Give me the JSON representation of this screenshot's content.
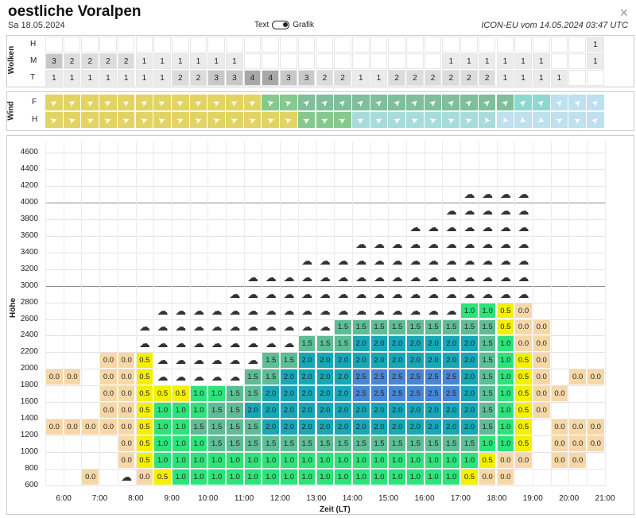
{
  "header": {
    "title": "oestliche Voralpen",
    "date": "Sa 18.05.2024",
    "toggle_left": "Text",
    "toggle_right": "Grafik",
    "source": "ICON-EU vom 14.05.2024 03:47 UTC",
    "close": "×"
  },
  "cloud_section": {
    "label": "Wolken",
    "rows": [
      {
        "label": "H",
        "values": [
          "",
          "",
          "",
          "",
          "",
          "",
          "",
          "",
          "",
          "",
          "",
          "",
          "",
          "",
          "",
          "",
          "",
          "",
          "",
          "",
          "",
          "",
          "",
          "",
          "",
          "",
          "",
          "",
          "",
          "",
          "1"
        ]
      },
      {
        "label": "M",
        "values": [
          "3",
          "2",
          "2",
          "2",
          "2",
          "1",
          "1",
          "1",
          "1",
          "1",
          "1",
          "",
          "",
          "",
          "",
          "",
          "",
          "",
          "",
          "",
          "",
          "",
          "1",
          "1",
          "1",
          "1",
          "1",
          "1",
          "",
          "",
          "1"
        ]
      },
      {
        "label": "T",
        "values": [
          "1",
          "1",
          "1",
          "1",
          "1",
          "1",
          "1",
          "2",
          "2",
          "3",
          "3",
          "4",
          "4",
          "3",
          "3",
          "2",
          "2",
          "1",
          "1",
          "2",
          "2",
          "2",
          "2",
          "2",
          "2",
          "1",
          "1",
          "1",
          "1",
          "",
          ""
        ]
      }
    ]
  },
  "wind_section": {
    "label": "Wind",
    "rows": [
      {
        "label": "F",
        "dirs": [
          60,
          60,
          60,
          60,
          60,
          60,
          60,
          60,
          60,
          60,
          60,
          60,
          70,
          70,
          45,
          45,
          45,
          45,
          45,
          45,
          45,
          45,
          45,
          45,
          45,
          45,
          45,
          45,
          45,
          45,
          45
        ]
      },
      {
        "label": "H",
        "dirs": [
          70,
          70,
          70,
          70,
          70,
          70,
          70,
          70,
          70,
          70,
          70,
          70,
          70,
          70,
          60,
          60,
          60,
          60,
          60,
          60,
          70,
          70,
          70,
          70,
          90,
          100,
          110,
          110,
          60,
          60,
          45
        ]
      }
    ]
  },
  "chart_data": {
    "type": "heatmap",
    "ylabel": "Höhe",
    "xlabel": "Zeit (LT)",
    "y_ticks": [
      "4600",
      "4400",
      "4200",
      "4000",
      "3800",
      "3600",
      "3400",
      "3200",
      "3000",
      "2800",
      "2600",
      "2400",
      "2200",
      "2000",
      "1800",
      "1600",
      "1400",
      "1200",
      "1000",
      "800",
      "600"
    ],
    "x_ticks": [
      "6:00",
      "7:00",
      "8:00",
      "9:00",
      "10:00",
      "11:00",
      "12:00",
      "13:00",
      "14:00",
      "15:00",
      "16:00",
      "17:00",
      "18:00",
      "19:00",
      "20:00",
      "21:00"
    ],
    "rows": [
      {
        "alt": 4100,
        "cells": "-----------------------CCCC----"
      },
      {
        "alt": 3900,
        "cells": "---------------------CCCCCC----"
      },
      {
        "alt": 3700,
        "cells": "-------------------CCCCCCCC----"
      },
      {
        "alt": 3500,
        "cells": "-----------------CCCCCCCCCC----"
      },
      {
        "alt": 3300,
        "cells": "---------------CCCCCCCCCCCC----"
      },
      {
        "alt": 3100,
        "cells": "-----------CCCCCCCCCCCCCCCC----"
      },
      {
        "alt": 2900,
        "cells": "---------CCCCCCCCCCCCCCCCCC----"
      },
      {
        "alt": 2700,
        "cells": "------CCCCCCCCCCCCCCCCCCCCCC---"
      },
      {
        "alt": 2500,
        "cells": "-----CCCCCCCCCCCCCCCCCCCCCCCC--"
      },
      {
        "alt": 2300,
        "cells": "-----CCCCCCCCCCCCCCCCCCCCCCCC--"
      },
      {
        "alt": 2100,
        "cells": "---CCCCCCCCCCCCCCCCCCCCCCCCCC--"
      },
      {
        "alt": 1900,
        "cells": "--CCCCCCCCCCCCCCCCCCCCCCCCCCCC-"
      },
      {
        "alt": 1700,
        "cells": "--CCCCCCCCCCCCCCCCCCCCCCCCCCCCC"
      },
      {
        "alt": 1500,
        "cells": "--CCCCCCCCCCCCCCCCCCCCCCCCCCCC-"
      },
      {
        "alt": 1300,
        "cells": "CCCCCCCCCCCCCCCCCCCCCCCCCCCCCCC"
      },
      {
        "alt": 1100,
        "cells": "--CCCCCCCCCCCCCCCCCCCCCCCCCCCCC"
      },
      {
        "alt": 900,
        "cells": "--CCCCCCCCCCCCCCCCCCCCCCCCCCCC-"
      },
      {
        "alt": 700,
        "cells": "--CCCCCCCCCCCCCCCCCCCCCCCCCCC--"
      }
    ],
    "values": {
      "r2700": [
        "",
        "",
        "",
        "",
        "",
        "",
        "",
        "",
        "",
        "",
        "",
        "",
        "",
        "",
        "",
        "",
        "",
        "",
        "",
        "",
        "",
        "",
        "",
        "1.0",
        "1.0",
        "0.5",
        "0.0",
        "",
        "",
        "",
        ""
      ],
      "r2500": [
        "",
        "",
        "",
        "",
        "",
        "",
        "",
        "",
        "",
        "",
        "",
        "",
        "",
        "",
        "",
        "",
        "1.5",
        "1.5",
        "1.5",
        "1.5",
        "1.5",
        "1.5",
        "1.5",
        "1.5",
        "1.5",
        "0.5",
        "0.0",
        "0.0",
        "",
        "",
        ""
      ],
      "r2300": [
        "",
        "",
        "",
        "",
        "",
        "",
        "",
        "",
        "",
        "",
        "",
        "",
        "",
        "",
        "1.5",
        "1.5",
        "1.5",
        "2.0",
        "2.0",
        "2.0",
        "2.0",
        "2.0",
        "2.0",
        "2.0",
        "1.5",
        "1.0",
        "0.0",
        "0.0",
        "",
        "",
        ""
      ],
      "r2100": [
        "",
        "",
        "",
        "0.0",
        "0.0",
        "0.5",
        "",
        "",
        "",
        "",
        "",
        "",
        "1.5",
        "1.5",
        "2.0",
        "2.0",
        "2.0",
        "2.0",
        "2.0",
        "2.0",
        "2.0",
        "2.0",
        "2.0",
        "2.0",
        "1.5",
        "1.0",
        "0.5",
        "0.0",
        "",
        "",
        ""
      ],
      "r1900": [
        "0.0",
        "0.0",
        "",
        "0.0",
        "0.0",
        "0.5",
        "",
        "",
        "",
        "",
        "",
        "1.5",
        "1.5",
        "2.0",
        "2.0",
        "2.0",
        "2.0",
        "2.5",
        "2.5",
        "2.5",
        "2.5",
        "2.5",
        "2.5",
        "2.0",
        "1.5",
        "1.0",
        "0.5",
        "0.0",
        "",
        "0.0",
        "0.0"
      ],
      "r1700": [
        "",
        "",
        "",
        "0.0",
        "0.0",
        "0.5",
        "0.5",
        "0.5",
        "1.0",
        "1.0",
        "1.5",
        "1.5",
        "2.0",
        "2.0",
        "2.0",
        "2.0",
        "2.0",
        "2.5",
        "2.5",
        "2.5",
        "2.5",
        "2.5",
        "2.5",
        "2.0",
        "1.5",
        "1.0",
        "0.5",
        "0.0",
        "0.0",
        "",
        ""
      ],
      "r1500": [
        "",
        "",
        "",
        "0.0",
        "0.0",
        "0.5",
        "1.0",
        "1.0",
        "1.0",
        "1.5",
        "1.5",
        "2.0",
        "2.0",
        "2.0",
        "2.0",
        "2.0",
        "2.0",
        "2.0",
        "2.0",
        "2.0",
        "2.0",
        "2.0",
        "2.0",
        "2.0",
        "1.5",
        "1.0",
        "0.5",
        "0.0",
        "",
        "",
        ""
      ],
      "r1300": [
        "0.0",
        "0.0",
        "0.0",
        "0.0",
        "0.0",
        "0.5",
        "1.0",
        "1.0",
        "1.5",
        "1.5",
        "1.5",
        "1.5",
        "2.0",
        "2.0",
        "2.0",
        "2.0",
        "2.0",
        "2.0",
        "2.0",
        "2.0",
        "2.0",
        "2.0",
        "2.0",
        "2.0",
        "1.5",
        "1.0",
        "0.5",
        "",
        "0.0",
        "0.0",
        "0.0"
      ],
      "r1100": [
        "",
        "",
        "",
        "",
        "0.0",
        "0.5",
        "1.0",
        "1.0",
        "1.0",
        "1.5",
        "1.5",
        "1.5",
        "1.5",
        "1.5",
        "1.5",
        "1.5",
        "1.5",
        "1.5",
        "1.5",
        "1.5",
        "1.5",
        "1.5",
        "1.5",
        "1.5",
        "1.0",
        "1.0",
        "0.5",
        "",
        "0.0",
        "0.0",
        "0.0"
      ],
      "r900": [
        "",
        "",
        "",
        "",
        "0.0",
        "0.5",
        "1.0",
        "1.0",
        "1.0",
        "1.0",
        "1.0",
        "1.0",
        "1.0",
        "1.0",
        "1.0",
        "1.0",
        "1.0",
        "1.0",
        "1.0",
        "1.0",
        "1.0",
        "1.0",
        "1.0",
        "1.0",
        "0.5",
        "0.0",
        "0.0",
        "",
        "0.0",
        "0.0",
        ""
      ],
      "r700": [
        "",
        "",
        "0.0",
        "",
        "",
        "0.0",
        "0.5",
        "1.0",
        "1.0",
        "1.0",
        "1.0",
        "1.0",
        "1.0",
        "1.0",
        "1.0",
        "1.0",
        "1.0",
        "1.0",
        "1.0",
        "1.0",
        "1.0",
        "1.0",
        "1.0",
        "0.5",
        "0.0",
        "0.0",
        "",
        "",
        "",
        "",
        ""
      ]
    },
    "cloud_icons": {
      "r4100": [
        23,
        24,
        25,
        26
      ],
      "r3900": [
        22,
        23,
        24,
        25,
        26
      ],
      "r3700": [
        20,
        21,
        22,
        23,
        24,
        25,
        26
      ],
      "r3500": [
        17,
        18,
        19,
        20,
        21,
        22,
        23,
        24,
        25,
        26
      ],
      "r3300": [
        14,
        15,
        16,
        17,
        18,
        19,
        20,
        21,
        22,
        23,
        24,
        25,
        26
      ],
      "r3100": [
        11,
        12,
        13,
        14,
        15,
        16,
        17,
        18,
        19,
        20,
        21,
        22,
        23,
        24,
        25,
        26
      ],
      "r2900": [
        10,
        11,
        12,
        13,
        14,
        15,
        16,
        17,
        18,
        19,
        20,
        21,
        22,
        23,
        24,
        25,
        26
      ],
      "r2700": [
        6,
        7,
        8,
        9,
        10,
        11,
        12,
        13,
        14,
        15,
        16,
        17,
        18,
        19,
        20,
        21,
        22
      ],
      "r2500": [
        5,
        6,
        7,
        8,
        9,
        10,
        11,
        12,
        13,
        14,
        15
      ],
      "r2300": [
        5,
        6,
        7,
        8,
        9,
        10,
        11,
        12,
        13
      ],
      "r2100": [
        6,
        7,
        8,
        9,
        10,
        11
      ],
      "r1900": [
        6,
        7,
        8,
        9,
        10
      ],
      "r1100": [
        4
      ],
      "r900": [
        4
      ],
      "r700": [
        4
      ]
    },
    "colors": {
      "0.0": "#f6d8a8",
      "0.5": "#f4f000",
      "1.0": "#2de37a",
      "1.5": "#5ebd96",
      "2.0": "#17a8b8",
      "2.5": "#4a86d6"
    }
  }
}
